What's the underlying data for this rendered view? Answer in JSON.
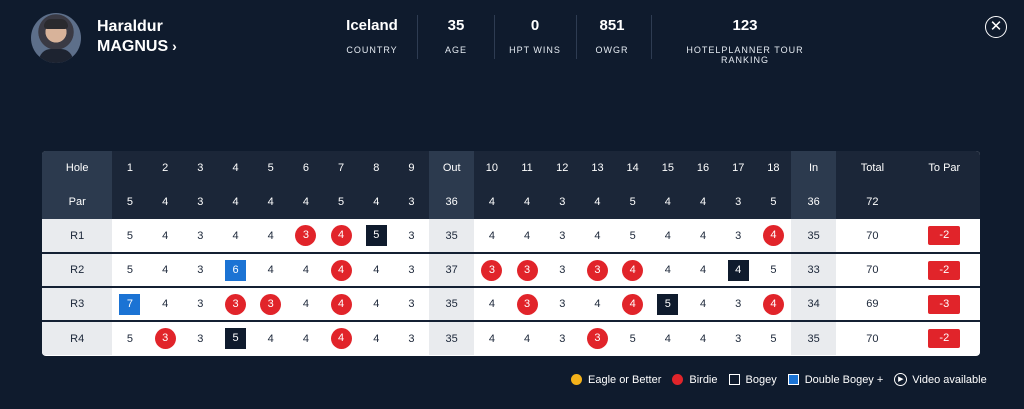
{
  "player": {
    "first_name": "Haraldur",
    "last_name": "MAGNUS",
    "chevron": "›"
  },
  "stats": [
    {
      "value": "Iceland",
      "label": "COUNTRY"
    },
    {
      "value": "35",
      "label": "AGE"
    },
    {
      "value": "0",
      "label": "HPT WINS"
    },
    {
      "value": "851",
      "label": "OWGR"
    },
    {
      "value": "123",
      "label": "HOTELPLANNER TOUR RANKING"
    }
  ],
  "close_icon": "✕",
  "scorecard": {
    "columns": [
      "Hole",
      "1",
      "2",
      "3",
      "4",
      "5",
      "6",
      "7",
      "8",
      "9",
      "Out",
      "10",
      "11",
      "12",
      "13",
      "14",
      "15",
      "16",
      "17",
      "18",
      "In",
      "Total",
      "To Par"
    ],
    "par_row": [
      "Par",
      "5",
      "4",
      "3",
      "4",
      "4",
      "4",
      "5",
      "4",
      "3",
      "36",
      "4",
      "4",
      "3",
      "4",
      "5",
      "4",
      "4",
      "3",
      "5",
      "36",
      "72",
      ""
    ],
    "rounds": [
      {
        "label": "R1",
        "holes": [
          [
            "5",
            ""
          ],
          [
            "4",
            ""
          ],
          [
            "3",
            ""
          ],
          [
            "4",
            ""
          ],
          [
            "4",
            ""
          ],
          [
            "3",
            "birdie"
          ],
          [
            "4",
            "birdie"
          ],
          [
            "5",
            "bogey"
          ],
          [
            "3",
            ""
          ],
          [
            "35",
            "sub"
          ],
          [
            "4",
            ""
          ],
          [
            "4",
            ""
          ],
          [
            "3",
            ""
          ],
          [
            "4",
            ""
          ],
          [
            "5",
            ""
          ],
          [
            "4",
            ""
          ],
          [
            "4",
            ""
          ],
          [
            "3",
            ""
          ],
          [
            "4",
            "birdie"
          ],
          [
            "35",
            "sub"
          ]
        ],
        "total": "70",
        "to_par": "-2"
      },
      {
        "label": "R2",
        "holes": [
          [
            "5",
            ""
          ],
          [
            "4",
            ""
          ],
          [
            "3",
            ""
          ],
          [
            "6",
            "dbogey"
          ],
          [
            "4",
            ""
          ],
          [
            "4",
            ""
          ],
          [
            "4",
            "birdie"
          ],
          [
            "4",
            ""
          ],
          [
            "3",
            ""
          ],
          [
            "37",
            "sub"
          ],
          [
            "3",
            "birdie"
          ],
          [
            "3",
            "birdie"
          ],
          [
            "3",
            ""
          ],
          [
            "3",
            "birdie"
          ],
          [
            "4",
            "birdie"
          ],
          [
            "4",
            ""
          ],
          [
            "4",
            ""
          ],
          [
            "4",
            "bogey"
          ],
          [
            "5",
            ""
          ],
          [
            "33",
            "sub"
          ]
        ],
        "total": "70",
        "to_par": "-2"
      },
      {
        "label": "R3",
        "holes": [
          [
            "7",
            "dbogey"
          ],
          [
            "4",
            ""
          ],
          [
            "3",
            ""
          ],
          [
            "3",
            "birdie"
          ],
          [
            "3",
            "birdie"
          ],
          [
            "4",
            ""
          ],
          [
            "4",
            "birdie"
          ],
          [
            "4",
            ""
          ],
          [
            "3",
            ""
          ],
          [
            "35",
            "sub"
          ],
          [
            "4",
            ""
          ],
          [
            "3",
            "birdie"
          ],
          [
            "3",
            ""
          ],
          [
            "4",
            ""
          ],
          [
            "4",
            "birdie"
          ],
          [
            "5",
            "bogey"
          ],
          [
            "4",
            ""
          ],
          [
            "3",
            ""
          ],
          [
            "4",
            "birdie"
          ],
          [
            "34",
            "sub"
          ]
        ],
        "total": "69",
        "to_par": "-3"
      },
      {
        "label": "R4",
        "holes": [
          [
            "5",
            ""
          ],
          [
            "3",
            "birdie"
          ],
          [
            "3",
            ""
          ],
          [
            "5",
            "bogey"
          ],
          [
            "4",
            ""
          ],
          [
            "4",
            ""
          ],
          [
            "4",
            "birdie"
          ],
          [
            "4",
            ""
          ],
          [
            "3",
            ""
          ],
          [
            "35",
            "sub"
          ],
          [
            "4",
            ""
          ],
          [
            "4",
            ""
          ],
          [
            "3",
            ""
          ],
          [
            "3",
            "birdie"
          ],
          [
            "5",
            ""
          ],
          [
            "4",
            ""
          ],
          [
            "4",
            ""
          ],
          [
            "3",
            ""
          ],
          [
            "5",
            ""
          ],
          [
            "35",
            "sub"
          ]
        ],
        "total": "70",
        "to_par": "-2"
      }
    ]
  },
  "legend": {
    "eagle": "Eagle or Better",
    "birdie": "Birdie",
    "bogey": "Bogey",
    "dbogey": "Double Bogey +",
    "video": "Video available",
    "video_icon": "▶"
  }
}
